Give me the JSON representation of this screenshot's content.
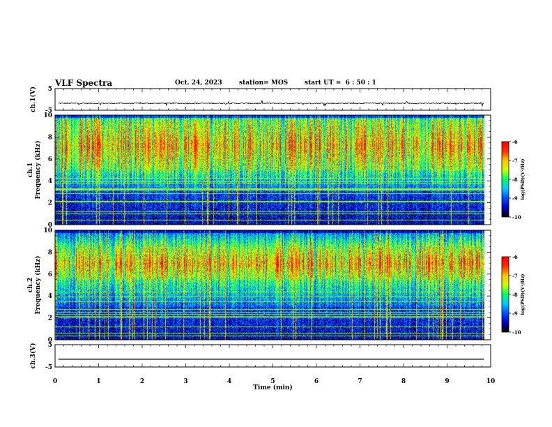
{
  "header": {
    "title": "VLF Spectra",
    "date": "Oct. 24, 2023",
    "station": "station= MOS",
    "start_ut": "start UT =  6 : 50 : 1"
  },
  "chart_data": [
    {
      "type": "line",
      "panel": "ch1-waveform",
      "ylabel": "ch.1(V)",
      "ylim": [
        -5,
        5
      ],
      "yticks": [
        "5",
        "-5"
      ],
      "series": [
        {
          "values_summary": "near-constant level ~ -1.8 V with small spikes"
        }
      ],
      "color": "#000000"
    },
    {
      "type": "heatmap",
      "panel": "ch1-spectrogram",
      "ylabel": "ch.1\nFrequency (kHz)",
      "ylabel_line1": "ch.1",
      "ylabel_line2": "Frequency (kHz)",
      "ylim": [
        0,
        10
      ],
      "yticks": [
        "0",
        "2",
        "4",
        "6",
        "8",
        "10"
      ],
      "xlim": [
        0,
        9.85
      ],
      "intense_band_khz": [
        5.0,
        9.5
      ],
      "colorbar": {
        "label": "log(PSD)(V²/Hz)",
        "ticks": [
          "-6",
          "-7",
          "-8",
          "-9",
          "-10"
        ],
        "range": [
          -10,
          -6
        ]
      }
    },
    {
      "type": "heatmap",
      "panel": "ch2-spectrogram",
      "ylabel": "ch.2\nFrequency (kHz)",
      "ylabel_line1": "ch.2",
      "ylabel_line2": "Frequency (kHz)",
      "ylim": [
        0,
        10
      ],
      "yticks": [
        "0",
        "2",
        "4",
        "6",
        "8",
        "10"
      ],
      "xlim": [
        0,
        9.85
      ],
      "intense_band_khz": [
        5.5,
        8.5
      ],
      "colorbar": {
        "label": "log(PSD)(V²/Hz)",
        "ticks": [
          "-6",
          "-7",
          "-8",
          "-9",
          "-10"
        ],
        "range": [
          -10,
          -6
        ]
      }
    },
    {
      "type": "line",
      "panel": "ch3-waveform",
      "ylabel": "ch.3(V)",
      "ylim": [
        -5,
        5
      ],
      "yticks": [
        "5",
        "-5"
      ],
      "series": [
        {
          "values_summary": "constant level ~ -1.5 V"
        }
      ],
      "color": "#000000"
    }
  ],
  "x_axis": {
    "label": "Time  (min)",
    "xlim": [
      0,
      10
    ],
    "ticks": [
      "0",
      "1",
      "2",
      "3",
      "4",
      "5",
      "6",
      "7",
      "8",
      "9",
      "10"
    ]
  },
  "colors": {
    "colormap": [
      "#000000",
      "#0000c8",
      "#0050ff",
      "#00c8ff",
      "#00ff64",
      "#c8ff00",
      "#ffc800",
      "#ff3000",
      "#ff0000"
    ]
  }
}
